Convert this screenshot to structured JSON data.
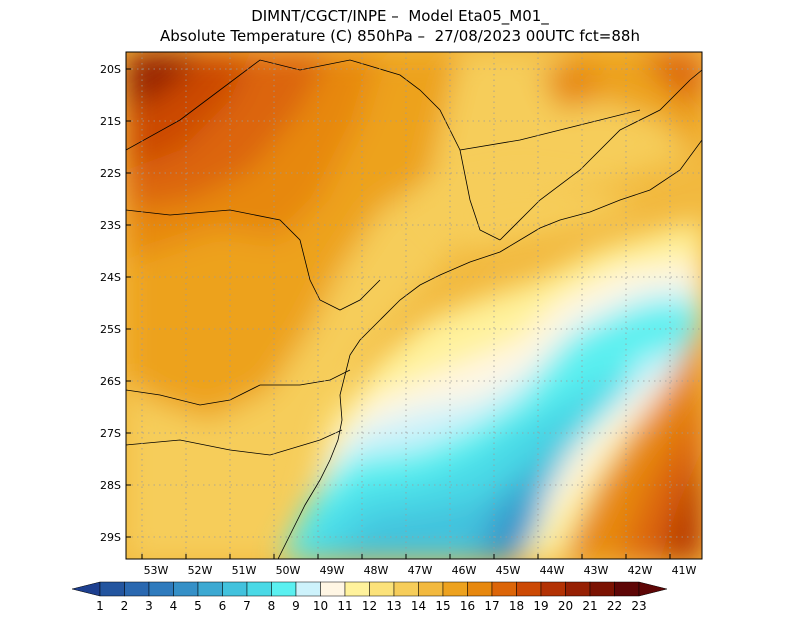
{
  "title": {
    "line1": "DIMNT/CGCT/INPE –  Model Eta05_M01_",
    "line2": "Absolute Temperature (C) 850hPa –  27/08/2023 00UTC fct=88h"
  },
  "lat_labels": [
    "20S",
    "21S",
    "22S",
    "23S",
    "24S",
    "25S",
    "26S",
    "27S",
    "28S",
    "29S"
  ],
  "lon_labels": [
    "53W",
    "52W",
    "51W",
    "50W",
    "49W",
    "48W",
    "47W",
    "46W",
    "45W",
    "44W",
    "43W",
    "42W",
    "41W"
  ],
  "colorbar": {
    "labels": [
      "1",
      "2",
      "3",
      "4",
      "5",
      "6",
      "7",
      "8",
      "9",
      "10",
      "11",
      "12",
      "13",
      "14",
      "15",
      "16",
      "17",
      "18",
      "19",
      "20",
      "21",
      "22",
      "23"
    ],
    "colors": [
      "#1d3f8f",
      "#23559f",
      "#2a68b0",
      "#2f7bbd",
      "#3590c7",
      "#3ca9d2",
      "#42c2dd",
      "#4ad9e6",
      "#5af0f0",
      "#cdf2fb",
      "#fff6e4",
      "#fff29c",
      "#fbe27a",
      "#f6cd5a",
      "#f2b93f",
      "#eda21f",
      "#e7880e",
      "#dc6508",
      "#cc4904",
      "#b33204",
      "#962003",
      "#7b1202",
      "#5e0606"
    ]
  }
}
